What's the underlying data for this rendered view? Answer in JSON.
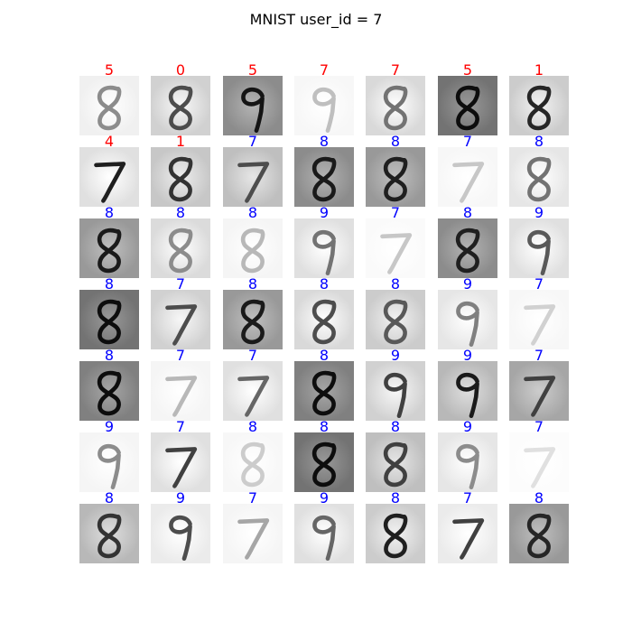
{
  "title": "MNIST user_id = 7",
  "colors": {
    "correct": "#0000ff",
    "incorrect": "#ff0000"
  },
  "chart_data": {
    "type": "image-grid",
    "title": "MNIST user_id = 7",
    "rows": 7,
    "cols": 7,
    "cells": [
      {
        "label": "5",
        "digit": "8",
        "status": "incorrect",
        "bg": 0.94,
        "ink": 0.55
      },
      {
        "label": "0",
        "digit": "8",
        "status": "incorrect",
        "bg": 0.82,
        "ink": 0.3
      },
      {
        "label": "5",
        "digit": "9",
        "status": "incorrect",
        "bg": 0.55,
        "ink": 0.08
      },
      {
        "label": "7",
        "digit": "9",
        "status": "incorrect",
        "bg": 0.97,
        "ink": 0.75
      },
      {
        "label": "7",
        "digit": "8",
        "status": "incorrect",
        "bg": 0.85,
        "ink": 0.45
      },
      {
        "label": "5",
        "digit": "8",
        "status": "incorrect",
        "bg": 0.45,
        "ink": 0.05
      },
      {
        "label": "1",
        "digit": "8",
        "status": "incorrect",
        "bg": 0.8,
        "ink": 0.15
      },
      {
        "label": "4",
        "digit": "7",
        "status": "incorrect",
        "bg": 0.88,
        "ink": 0.12
      },
      {
        "label": "1",
        "digit": "8",
        "status": "incorrect",
        "bg": 0.78,
        "ink": 0.2
      },
      {
        "label": "7",
        "digit": "7",
        "status": "correct",
        "bg": 0.75,
        "ink": 0.3
      },
      {
        "label": "8",
        "digit": "8",
        "status": "correct",
        "bg": 0.55,
        "ink": 0.1
      },
      {
        "label": "8",
        "digit": "8",
        "status": "correct",
        "bg": 0.6,
        "ink": 0.12
      },
      {
        "label": "7",
        "digit": "7",
        "status": "correct",
        "bg": 0.97,
        "ink": 0.78
      },
      {
        "label": "8",
        "digit": "8",
        "status": "correct",
        "bg": 0.9,
        "ink": 0.45
      },
      {
        "label": "8",
        "digit": "8",
        "status": "correct",
        "bg": 0.6,
        "ink": 0.1
      },
      {
        "label": "8",
        "digit": "8",
        "status": "correct",
        "bg": 0.86,
        "ink": 0.55
      },
      {
        "label": "8",
        "digit": "8",
        "status": "correct",
        "bg": 0.96,
        "ink": 0.72
      },
      {
        "label": "9",
        "digit": "9",
        "status": "correct",
        "bg": 0.88,
        "ink": 0.45
      },
      {
        "label": "7",
        "digit": "7",
        "status": "correct",
        "bg": 0.98,
        "ink": 0.78
      },
      {
        "label": "8",
        "digit": "8",
        "status": "correct",
        "bg": 0.55,
        "ink": 0.12
      },
      {
        "label": "9",
        "digit": "9",
        "status": "correct",
        "bg": 0.88,
        "ink": 0.35
      },
      {
        "label": "8",
        "digit": "8",
        "status": "correct",
        "bg": 0.45,
        "ink": 0.05
      },
      {
        "label": "7",
        "digit": "7",
        "status": "correct",
        "bg": 0.82,
        "ink": 0.3
      },
      {
        "label": "8",
        "digit": "8",
        "status": "correct",
        "bg": 0.6,
        "ink": 0.1
      },
      {
        "label": "8",
        "digit": "8",
        "status": "correct",
        "bg": 0.85,
        "ink": 0.3
      },
      {
        "label": "8",
        "digit": "8",
        "status": "correct",
        "bg": 0.8,
        "ink": 0.35
      },
      {
        "label": "9",
        "digit": "9",
        "status": "correct",
        "bg": 0.9,
        "ink": 0.5
      },
      {
        "label": "7",
        "digit": "7",
        "status": "correct",
        "bg": 0.97,
        "ink": 0.82
      },
      {
        "label": "8",
        "digit": "8",
        "status": "correct",
        "bg": 0.5,
        "ink": 0.05
      },
      {
        "label": "7",
        "digit": "7",
        "status": "correct",
        "bg": 0.96,
        "ink": 0.72
      },
      {
        "label": "7",
        "digit": "7",
        "status": "correct",
        "bg": 0.88,
        "ink": 0.4
      },
      {
        "label": "8",
        "digit": "8",
        "status": "correct",
        "bg": 0.5,
        "ink": 0.05
      },
      {
        "label": "9",
        "digit": "9",
        "status": "correct",
        "bg": 0.82,
        "ink": 0.25
      },
      {
        "label": "9",
        "digit": "9",
        "status": "correct",
        "bg": 0.72,
        "ink": 0.1
      },
      {
        "label": "7",
        "digit": "7",
        "status": "correct",
        "bg": 0.65,
        "ink": 0.25
      },
      {
        "label": "9",
        "digit": "9",
        "status": "correct",
        "bg": 0.96,
        "ink": 0.55
      },
      {
        "label": "7",
        "digit": "7",
        "status": "correct",
        "bg": 0.88,
        "ink": 0.25
      },
      {
        "label": "8",
        "digit": "8",
        "status": "correct",
        "bg": 0.97,
        "ink": 0.8
      },
      {
        "label": "8",
        "digit": "8",
        "status": "correct",
        "bg": 0.45,
        "ink": 0.05
      },
      {
        "label": "8",
        "digit": "8",
        "status": "correct",
        "bg": 0.75,
        "ink": 0.25
      },
      {
        "label": "9",
        "digit": "9",
        "status": "correct",
        "bg": 0.9,
        "ink": 0.55
      },
      {
        "label": "7",
        "digit": "7",
        "status": "correct",
        "bg": 0.99,
        "ink": 0.88
      },
      {
        "label": "8",
        "digit": "8",
        "status": "correct",
        "bg": 0.72,
        "ink": 0.2
      },
      {
        "label": "9",
        "digit": "9",
        "status": "correct",
        "bg": 0.92,
        "ink": 0.3
      },
      {
        "label": "7",
        "digit": "7",
        "status": "correct",
        "bg": 0.96,
        "ink": 0.65
      },
      {
        "label": "9",
        "digit": "9",
        "status": "correct",
        "bg": 0.88,
        "ink": 0.4
      },
      {
        "label": "8",
        "digit": "8",
        "status": "correct",
        "bg": 0.8,
        "ink": 0.12
      },
      {
        "label": "7",
        "digit": "7",
        "status": "correct",
        "bg": 0.92,
        "ink": 0.25
      },
      {
        "label": "8",
        "digit": "8",
        "status": "correct",
        "bg": 0.6,
        "ink": 0.15
      }
    ]
  }
}
